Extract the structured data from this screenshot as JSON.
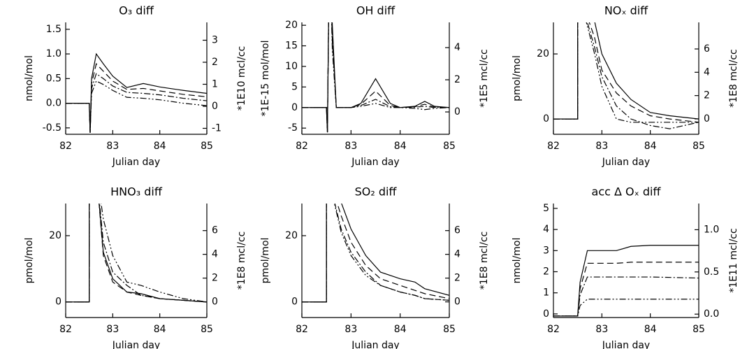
{
  "chart_data": [
    {
      "type": "line",
      "title": "O₃ diff",
      "xlabel": "Julian day",
      "ylabel": "nmol/mol",
      "y2label": "*1E10 mcl/cc",
      "xlim": [
        82,
        85
      ],
      "xticks": [
        82,
        83,
        84,
        85
      ],
      "ylim": [
        -0.63,
        1.64
      ],
      "yticks": [
        -0.5,
        {
          "value": 0,
          "label": "0.0"
        },
        0.5,
        {
          "value": 1,
          "label": "1.0"
        },
        1.5
      ],
      "y2lim": [
        -1.27,
        3.81
      ],
      "y2ticks": [
        -1,
        0,
        1,
        2,
        3
      ],
      "x": [
        82,
        82.5,
        82.52,
        82.55,
        82.65,
        82.8,
        83.0,
        83.3,
        83.65,
        84.0,
        84.5,
        85
      ],
      "series": [
        {
          "color": "#000000",
          "dash": "solid",
          "values": [
            0,
            0,
            -0.6,
            0.5,
            1.0,
            0.8,
            0.55,
            0.32,
            0.4,
            0.33,
            0.26,
            0.2
          ]
        },
        {
          "color": "#000000",
          "dash": "dash",
          "values": [
            0,
            0,
            -0.6,
            0.4,
            0.8,
            0.65,
            0.45,
            0.28,
            0.3,
            0.25,
            0.18,
            0.13
          ]
        },
        {
          "color": "#000000",
          "dash": "dashdot",
          "values": [
            0,
            0,
            -0.6,
            0.3,
            0.6,
            0.5,
            0.35,
            0.22,
            0.2,
            0.17,
            0.1,
            0.05
          ]
        },
        {
          "color": "#000000",
          "dash": "dashdotdot",
          "values": [
            0,
            0,
            -0.6,
            0.2,
            0.45,
            0.38,
            0.26,
            0.12,
            0.1,
            0.07,
            0.0,
            -0.05
          ]
        }
      ]
    },
    {
      "type": "line",
      "title": "OH diff",
      "xlabel": "Julian day",
      "ylabel": "*1E-15 mol/mol",
      "y2label": "*1E5 mcl/cc",
      "xlim": [
        82,
        85
      ],
      "xticks": [
        82,
        83,
        84,
        85
      ],
      "ylim": [
        -6.5,
        20.7
      ],
      "yticks": [
        -5,
        0,
        5,
        10,
        15,
        20
      ],
      "y2lim": [
        -1.39,
        5.57
      ],
      "y2ticks": [
        0,
        2,
        4
      ],
      "x": [
        82,
        82.5,
        82.52,
        82.56,
        82.62,
        82.7,
        83.0,
        83.2,
        83.5,
        83.8,
        84.0,
        84.3,
        84.5,
        84.7,
        85
      ],
      "series": [
        {
          "color": "#000000",
          "dash": "solid",
          "values": [
            0,
            0,
            -6,
            40,
            20,
            0,
            0,
            1,
            7,
            1,
            0,
            0.3,
            1.5,
            0.3,
            0
          ]
        },
        {
          "color": "#000000",
          "dash": "dash",
          "values": [
            0,
            0,
            -6,
            40,
            18,
            0,
            0,
            0.8,
            4,
            0.5,
            0,
            0.2,
            0.8,
            0.1,
            0
          ]
        },
        {
          "color": "#000000",
          "dash": "dashdot",
          "values": [
            0,
            0,
            -6,
            40,
            16,
            0,
            0,
            0.5,
            2,
            0.2,
            0,
            0.1,
            0.3,
            0,
            0
          ]
        },
        {
          "color": "#000000",
          "dash": "dashdotdot",
          "values": [
            0,
            0,
            -6,
            40,
            14,
            0,
            0,
            0.3,
            1,
            0,
            0,
            -0.2,
            -0.5,
            -0.2,
            0
          ]
        }
      ]
    },
    {
      "type": "line",
      "title": "NOₓ diff",
      "xlabel": "Julian day",
      "ylabel": "pmol/mol",
      "y2label": "*1E8 mcl/cc",
      "xlim": [
        82,
        85
      ],
      "xticks": [
        82,
        83,
        84,
        85
      ],
      "ylim": [
        -4.7,
        29.7
      ],
      "yticks": [
        0,
        20
      ],
      "y2lim": [
        -1.32,
        8.28
      ],
      "y2ticks": [
        0,
        2,
        4,
        6
      ],
      "x": [
        82,
        82.5,
        82.5,
        82.85,
        83.0,
        83.3,
        83.6,
        84.0,
        84.4,
        85
      ],
      "series": [
        {
          "color": "#000000",
          "dash": "solid",
          "values": [
            0,
            0,
            40,
            30,
            20,
            11,
            6,
            2,
            1,
            0
          ]
        },
        {
          "color": "#000000",
          "dash": "dash",
          "values": [
            0,
            0,
            40,
            25,
            15,
            8,
            4,
            1,
            0,
            -1
          ]
        },
        {
          "color": "#000000",
          "dash": "dashdot",
          "values": [
            0,
            0,
            40,
            22,
            13,
            4,
            0,
            -2,
            -3,
            -1
          ]
        },
        {
          "color": "#000000",
          "dash": "dashdotdot",
          "values": [
            0,
            0,
            40,
            20,
            10,
            0,
            -1,
            -1,
            -1,
            -1
          ]
        }
      ]
    },
    {
      "type": "line",
      "title": "HNO₃ diff",
      "xlabel": "Julian day",
      "ylabel": "pmol/mol",
      "y2label": "*1E8 mcl/cc",
      "xlim": [
        82,
        85
      ],
      "xticks": [
        82,
        83,
        84,
        85
      ],
      "ylim": [
        -4.7,
        29.7
      ],
      "yticks": [
        0,
        20
      ],
      "y2lim": [
        -1.32,
        8.28
      ],
      "y2ticks": [
        0,
        2,
        4,
        6
      ],
      "x": [
        82,
        82.5,
        82.5,
        82.65,
        82.8,
        83.0,
        83.3,
        83.6,
        84.0,
        84.5,
        85
      ],
      "series": [
        {
          "color": "#000000",
          "dash": "solid",
          "values": [
            0,
            0,
            40,
            40,
            15,
            7,
            3,
            2.5,
            1,
            0.5,
            0
          ]
        },
        {
          "color": "#000000",
          "dash": "dash",
          "values": [
            0,
            0,
            40,
            40,
            14,
            6,
            3,
            2,
            1,
            0.5,
            0
          ]
        },
        {
          "color": "#000000",
          "dash": "dashdot",
          "values": [
            0,
            0,
            40,
            40,
            18,
            9,
            5,
            2,
            1,
            0.5,
            0
          ]
        },
        {
          "color": "#000000",
          "dash": "dashdotdot",
          "values": [
            0,
            0,
            40,
            40,
            25,
            14,
            6,
            5,
            3,
            1,
            0
          ]
        }
      ]
    },
    {
      "type": "line",
      "title": "SO₂ diff",
      "xlabel": "Julian day",
      "ylabel": "pmol/mol",
      "y2label": "*1E8 mcl/cc",
      "xlim": [
        82,
        85
      ],
      "xticks": [
        82,
        83,
        84,
        85
      ],
      "ylim": [
        -4.7,
        29.7
      ],
      "yticks": [
        0,
        20
      ],
      "y2lim": [
        -1.32,
        8.28
      ],
      "y2ticks": [
        0,
        2,
        4,
        6
      ],
      "x": [
        82,
        82.5,
        82.5,
        82.8,
        83.0,
        83.3,
        83.6,
        84.0,
        84.3,
        84.5,
        85
      ],
      "series": [
        {
          "color": "#000000",
          "dash": "solid",
          "values": [
            0,
            0,
            40,
            30,
            22,
            14,
            9,
            7,
            6,
            4,
            2
          ]
        },
        {
          "color": "#000000",
          "dash": "dash",
          "values": [
            0,
            0,
            40,
            26,
            18,
            11,
            7,
            5,
            3.5,
            2.5,
            1
          ]
        },
        {
          "color": "#000000",
          "dash": "dashdot",
          "values": [
            0,
            0,
            40,
            22,
            15,
            9,
            5,
            3,
            2,
            1,
            0.5
          ]
        },
        {
          "color": "#000000",
          "dash": "dashdotdot",
          "values": [
            0,
            0,
            40,
            21,
            14,
            8,
            5,
            3,
            2,
            1,
            0.5
          ]
        }
      ]
    },
    {
      "type": "line",
      "title": "acc Δ Oₓ diff",
      "xlabel": "Julian day",
      "ylabel": "nmol/mol",
      "y2label": "*1E11 mcl/cc",
      "xlim": [
        82,
        85
      ],
      "xticks": [
        82,
        83,
        84,
        85
      ],
      "ylim": [
        -0.17,
        5.23
      ],
      "yticks": [
        0,
        1,
        2,
        3,
        4,
        5
      ],
      "y2lim": [
        -0.04,
        1.31
      ],
      "y2ticks": [
        {
          "value": 0,
          "label": "0.0"
        },
        0.5,
        {
          "value": 1,
          "label": "1.0"
        }
      ],
      "x": [
        82,
        82.5,
        82.55,
        82.7,
        83.3,
        83.6,
        84,
        85
      ],
      "series": [
        {
          "color": "#000000",
          "dash": "solid",
          "values": [
            -0.1,
            -0.1,
            1.5,
            3.0,
            3.0,
            3.2,
            3.25,
            3.25
          ]
        },
        {
          "color": "#000000",
          "dash": "dash",
          "values": [
            -0.1,
            -0.1,
            1.2,
            2.4,
            2.4,
            2.45,
            2.45,
            2.45
          ]
        },
        {
          "color": "#000000",
          "dash": "dashdot",
          "values": [
            -0.1,
            -0.1,
            0.9,
            1.75,
            1.75,
            1.75,
            1.75,
            1.7
          ]
        },
        {
          "color": "#000000",
          "dash": "dashdotdot",
          "values": [
            -0.1,
            -0.1,
            0.4,
            0.7,
            0.7,
            0.7,
            0.7,
            0.7
          ]
        }
      ]
    }
  ]
}
